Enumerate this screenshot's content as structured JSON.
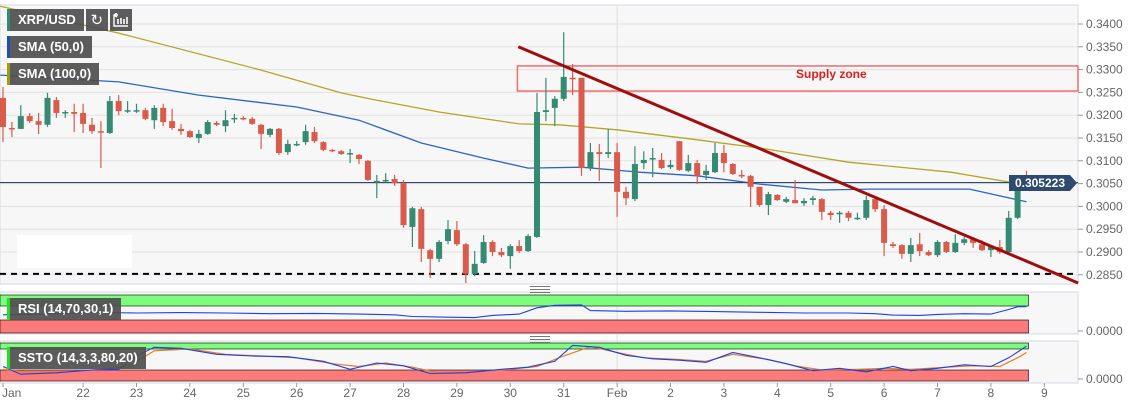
{
  "legend": {
    "symbol": "XRP/USD",
    "sma50": "SMA (50,0)",
    "sma100": "SMA (100,0)",
    "rsi": "RSI (14,70,30,1)",
    "ssto": "SSTO (14,3,3,80,20)",
    "refresh_icon": "↻",
    "bars_icon": "bar-chart-icon"
  },
  "colors": {
    "up": "#358a74",
    "down": "#d95b4c",
    "sma50": "#2b64c8",
    "sma100": "#b5a425",
    "trendline": "#a00d0d",
    "zone": "#f36b6b",
    "price_line": "#2e4a6e",
    "rsi_line": "#1a3ff0",
    "ssto_k": "#1a3ff0",
    "ssto_d": "#f07a1a",
    "band_high": "#7dfc7d",
    "band_low": "#fb7b7b"
  },
  "current_price": "0.305223",
  "supply_zone_label": "Supply zone",
  "rsi_axis_label": "0.0000",
  "ssto_axis_label": "0.0000",
  "chart_data": {
    "type": "candlestick",
    "symbol": "XRP/USD",
    "interval_hours": 4,
    "ylim": [
      0.283,
      0.344
    ],
    "y_ticks": [
      "0.3400",
      "0.3350",
      "0.3300",
      "0.3250",
      "0.3200",
      "0.3150",
      "0.3100",
      "0.3050",
      "0.3000",
      "0.2950",
      "0.2900",
      "0.2850"
    ],
    "x_labels": [
      {
        "label": "Jan",
        "index": 0
      },
      {
        "label": "22",
        "index": 9
      },
      {
        "label": "23",
        "index": 15
      },
      {
        "label": "24",
        "index": 21
      },
      {
        "label": "25",
        "index": 27
      },
      {
        "label": "26",
        "index": 33
      },
      {
        "label": "27",
        "index": 39
      },
      {
        "label": "28",
        "index": 45
      },
      {
        "label": "29",
        "index": 51
      },
      {
        "label": "30",
        "index": 57
      },
      {
        "label": "31",
        "index": 63
      },
      {
        "label": "Feb",
        "index": 69
      },
      {
        "label": "2",
        "index": 75
      },
      {
        "label": "3",
        "index": 81
      },
      {
        "label": "4",
        "index": 87
      },
      {
        "label": "5",
        "index": 93
      },
      {
        "label": "6",
        "index": 99
      },
      {
        "label": "7",
        "index": 105
      },
      {
        "label": "8",
        "index": 111
      },
      {
        "label": "9",
        "index": 117
      }
    ],
    "ohlc": [
      [
        0.3238,
        0.3262,
        0.3141,
        0.3174
      ],
      [
        0.3172,
        0.3185,
        0.3152,
        0.3171
      ],
      [
        0.317,
        0.3222,
        0.317,
        0.3198
      ],
      [
        0.3198,
        0.3205,
        0.3183,
        0.3187
      ],
      [
        0.3187,
        0.3205,
        0.3159,
        0.3179
      ],
      [
        0.3179,
        0.3249,
        0.3174,
        0.3238
      ],
      [
        0.3233,
        0.324,
        0.3194,
        0.3205
      ],
      [
        0.3205,
        0.3211,
        0.3194,
        0.3207
      ],
      [
        0.3207,
        0.3225,
        0.3163,
        0.3203
      ],
      [
        0.3205,
        0.3225,
        0.3161,
        0.3181
      ],
      [
        0.3179,
        0.3194,
        0.3159,
        0.3165
      ],
      [
        0.3165,
        0.3187,
        0.3084,
        0.3163
      ],
      [
        0.3161,
        0.3242,
        0.3159,
        0.3231
      ],
      [
        0.3231,
        0.3244,
        0.32,
        0.3209
      ],
      [
        0.3209,
        0.3231,
        0.3205,
        0.3211
      ],
      [
        0.3209,
        0.3225,
        0.3205,
        0.3211
      ],
      [
        0.3211,
        0.3216,
        0.3189,
        0.3192
      ],
      [
        0.3189,
        0.3222,
        0.317,
        0.3216
      ],
      [
        0.3216,
        0.3225,
        0.3176,
        0.3185
      ],
      [
        0.3187,
        0.3214,
        0.3168,
        0.3172
      ],
      [
        0.317,
        0.3181,
        0.3157,
        0.3165
      ],
      [
        0.3165,
        0.3168,
        0.315,
        0.3152
      ],
      [
        0.315,
        0.3168,
        0.3139,
        0.3159
      ],
      [
        0.3159,
        0.3189,
        0.3157,
        0.3185
      ],
      [
        0.3183,
        0.3187,
        0.3176,
        0.3179
      ],
      [
        0.3176,
        0.3211,
        0.3163,
        0.3189
      ],
      [
        0.3192,
        0.3203,
        0.3183,
        0.3194
      ],
      [
        0.3194,
        0.3198,
        0.3189,
        0.3192
      ],
      [
        0.3192,
        0.3196,
        0.3179,
        0.3181
      ],
      [
        0.3179,
        0.3181,
        0.3126,
        0.3159
      ],
      [
        0.3157,
        0.3172,
        0.3152,
        0.317
      ],
      [
        0.317,
        0.3172,
        0.3113,
        0.3117
      ],
      [
        0.3119,
        0.3146,
        0.3113,
        0.3137
      ],
      [
        0.3135,
        0.3143,
        0.3132,
        0.3137
      ],
      [
        0.3141,
        0.3179,
        0.3135,
        0.3165
      ],
      [
        0.3163,
        0.3174,
        0.3139,
        0.3143
      ],
      [
        0.3141,
        0.3143,
        0.3121,
        0.3124
      ],
      [
        0.3124,
        0.3126,
        0.3119,
        0.3121
      ],
      [
        0.3121,
        0.3124,
        0.3113,
        0.3115
      ],
      [
        0.3115,
        0.3126,
        0.3095,
        0.3117
      ],
      [
        0.3113,
        0.3115,
        0.3093,
        0.3104
      ],
      [
        0.31,
        0.3102,
        0.3056,
        0.3058
      ],
      [
        0.3053,
        0.3069,
        0.3018,
        0.3056
      ],
      [
        0.3056,
        0.3073,
        0.3053,
        0.3058
      ],
      [
        0.306,
        0.3069,
        0.3045,
        0.3051
      ],
      [
        0.3051,
        0.3058,
        0.2953,
        0.2959
      ],
      [
        0.2955,
        0.2999,
        0.2911,
        0.2996
      ],
      [
        0.2994,
        0.2999,
        0.2878,
        0.2907
      ],
      [
        0.2904,
        0.2907,
        0.2843,
        0.2885
      ],
      [
        0.2885,
        0.2926,
        0.2878,
        0.2922
      ],
      [
        0.2924,
        0.297,
        0.2917,
        0.295
      ],
      [
        0.2948,
        0.2968,
        0.2913,
        0.2917
      ],
      [
        0.2917,
        0.292,
        0.2832,
        0.2852
      ],
      [
        0.2852,
        0.2902,
        0.2847,
        0.2874
      ],
      [
        0.2876,
        0.2937,
        0.2874,
        0.2922
      ],
      [
        0.2922,
        0.2926,
        0.2891,
        0.29
      ],
      [
        0.29,
        0.2909,
        0.2889,
        0.2893
      ],
      [
        0.2891,
        0.2917,
        0.2863,
        0.2913
      ],
      [
        0.2913,
        0.2926,
        0.2898,
        0.2902
      ],
      [
        0.2902,
        0.2939,
        0.29,
        0.2935
      ],
      [
        0.2933,
        0.3249,
        0.2931,
        0.3207
      ],
      [
        0.3207,
        0.3282,
        0.3187,
        0.3211
      ],
      [
        0.3216,
        0.3242,
        0.3176,
        0.3236
      ],
      [
        0.3236,
        0.3382,
        0.3231,
        0.3284
      ],
      [
        0.3282,
        0.3312,
        0.3244,
        0.3279
      ],
      [
        0.3282,
        0.3282,
        0.3067,
        0.3084
      ],
      [
        0.3084,
        0.3139,
        0.3078,
        0.3119
      ],
      [
        0.3119,
        0.3137,
        0.3056,
        0.3115
      ],
      [
        0.3115,
        0.317,
        0.3106,
        0.3119
      ],
      [
        0.3119,
        0.3139,
        0.2977,
        0.3032
      ],
      [
        0.3032,
        0.3043,
        0.3003,
        0.3018
      ],
      [
        0.3016,
        0.3132,
        0.3012,
        0.3093
      ],
      [
        0.3095,
        0.3121,
        0.3082,
        0.3102
      ],
      [
        0.3104,
        0.3128,
        0.3064,
        0.3106
      ],
      [
        0.3102,
        0.3117,
        0.3082,
        0.3084
      ],
      [
        0.3086,
        0.3102,
        0.3082,
        0.3091
      ],
      [
        0.3143,
        0.3143,
        0.3078,
        0.308
      ],
      [
        0.3078,
        0.3113,
        0.3075,
        0.3095
      ],
      [
        0.3095,
        0.3102,
        0.3049,
        0.3067
      ],
      [
        0.3069,
        0.3091,
        0.3058,
        0.3078
      ],
      [
        0.3075,
        0.3139,
        0.3073,
        0.3117
      ],
      [
        0.3117,
        0.3135,
        0.3075,
        0.3095
      ],
      [
        0.3093,
        0.3095,
        0.3069,
        0.3071
      ],
      [
        0.3069,
        0.308,
        0.3062,
        0.3067
      ],
      [
        0.3067,
        0.3069,
        0.2999,
        0.3043
      ],
      [
        0.3043,
        0.3043,
        0.2999,
        0.3003
      ],
      [
        0.3003,
        0.3032,
        0.2981,
        0.3027
      ],
      [
        0.3025,
        0.3027,
        0.3012,
        0.3014
      ],
      [
        0.301,
        0.3021,
        0.3007,
        0.3016
      ],
      [
        0.3014,
        0.3058,
        0.3007,
        0.3007
      ],
      [
        0.3007,
        0.3018,
        0.3001,
        0.3012
      ],
      [
        0.3014,
        0.3023,
        0.3003,
        0.3018
      ],
      [
        0.3016,
        0.3018,
        0.297,
        0.2988
      ],
      [
        0.2986,
        0.299,
        0.297,
        0.2981
      ],
      [
        0.2983,
        0.299,
        0.2964,
        0.2986
      ],
      [
        0.2986,
        0.299,
        0.2968,
        0.2975
      ],
      [
        0.2972,
        0.2986,
        0.297,
        0.2975
      ],
      [
        0.2975,
        0.3023,
        0.297,
        0.3014
      ],
      [
        0.3016,
        0.3021,
        0.2988,
        0.2994
      ],
      [
        0.2994,
        0.3003,
        0.2891,
        0.292
      ],
      [
        0.2917,
        0.2922,
        0.2909,
        0.2913
      ],
      [
        0.2915,
        0.2917,
        0.2885,
        0.2896
      ],
      [
        0.2896,
        0.2931,
        0.2878,
        0.2915
      ],
      [
        0.2917,
        0.2942,
        0.2891,
        0.2902
      ],
      [
        0.29,
        0.2904,
        0.2891,
        0.2893
      ],
      [
        0.2893,
        0.2926,
        0.2889,
        0.2922
      ],
      [
        0.2922,
        0.2924,
        0.2898,
        0.29
      ],
      [
        0.29,
        0.2939,
        0.2898,
        0.292
      ],
      [
        0.292,
        0.2933,
        0.2915,
        0.2928
      ],
      [
        0.2928,
        0.2933,
        0.2909,
        0.292
      ],
      [
        0.2917,
        0.2926,
        0.2902,
        0.2904
      ],
      [
        0.2904,
        0.2915,
        0.2889,
        0.2911
      ],
      [
        0.2911,
        0.2926,
        0.2896,
        0.29
      ],
      [
        0.29,
        0.299,
        0.2898,
        0.2975
      ],
      [
        0.2975,
        0.3062,
        0.2972,
        0.3058
      ],
      [
        0.306,
        0.3078,
        0.3051,
        0.3053
      ]
    ],
    "sma50": [
      [
        -0.3,
        0.3288
      ],
      [
        13,
        0.3273
      ],
      [
        22,
        0.3244
      ],
      [
        33,
        0.3218
      ],
      [
        40,
        0.3189
      ],
      [
        47,
        0.3139
      ],
      [
        54,
        0.3106
      ],
      [
        59,
        0.3084
      ],
      [
        65,
        0.3086
      ],
      [
        71.5,
        0.3075
      ],
      [
        78,
        0.3067
      ],
      [
        85,
        0.3049
      ],
      [
        92,
        0.3036
      ],
      [
        97.5,
        0.3038
      ],
      [
        108.6,
        0.3038
      ],
      [
        112,
        0.3023
      ],
      [
        115,
        0.301
      ]
    ],
    "sma100": [
      [
        -0.3,
        0.3439
      ],
      [
        13,
        0.338
      ],
      [
        29,
        0.3299
      ],
      [
        38,
        0.3249
      ],
      [
        42,
        0.3233
      ],
      [
        49,
        0.3207
      ],
      [
        58,
        0.3181
      ],
      [
        62.5,
        0.3179
      ],
      [
        69,
        0.3168
      ],
      [
        78,
        0.3146
      ],
      [
        85,
        0.3128
      ],
      [
        95,
        0.3097
      ],
      [
        106.5,
        0.3075
      ],
      [
        115,
        0.3047
      ]
    ],
    "trendline": [
      [
        57.9,
        0.335
      ],
      [
        120.8,
        0.2832
      ]
    ],
    "supply_zone": {
      "from_index": 57.8,
      "top": 0.3308,
      "bottom": 0.3253
    },
    "support_level": 0.2852,
    "current_price": 0.305223,
    "rsi": {
      "upper": 70,
      "lower": 30,
      "points": [
        [
          0,
          45
        ],
        [
          5,
          47
        ],
        [
          10,
          52
        ],
        [
          15,
          50
        ],
        [
          20,
          51
        ],
        [
          25,
          50
        ],
        [
          30,
          48
        ],
        [
          35,
          49
        ],
        [
          40,
          47
        ],
        [
          44,
          45
        ],
        [
          46,
          40
        ],
        [
          50,
          38
        ],
        [
          53,
          37
        ],
        [
          55,
          43
        ],
        [
          58,
          47
        ],
        [
          60,
          65
        ],
        [
          62,
          72
        ],
        [
          65,
          73
        ],
        [
          66,
          57
        ],
        [
          70,
          55
        ],
        [
          75,
          56
        ],
        [
          80,
          54
        ],
        [
          85,
          52
        ],
        [
          90,
          50
        ],
        [
          95,
          50
        ],
        [
          98,
          48
        ],
        [
          100,
          44
        ],
        [
          103,
          43
        ],
        [
          105,
          46
        ],
        [
          108,
          48
        ],
        [
          111,
          47
        ],
        [
          113,
          60
        ],
        [
          114,
          68
        ],
        [
          115,
          68
        ]
      ]
    },
    "ssto": {
      "upper": 80,
      "lower": 20,
      "k": [
        [
          0,
          30
        ],
        [
          2,
          8
        ],
        [
          6,
          12
        ],
        [
          10,
          20
        ],
        [
          13,
          22
        ],
        [
          15,
          60
        ],
        [
          17,
          85
        ],
        [
          20,
          82
        ],
        [
          24,
          65
        ],
        [
          28,
          60
        ],
        [
          32,
          58
        ],
        [
          36,
          45
        ],
        [
          39,
          22
        ],
        [
          42,
          40
        ],
        [
          45,
          32
        ],
        [
          48,
          10
        ],
        [
          52,
          12
        ],
        [
          56,
          22
        ],
        [
          59,
          28
        ],
        [
          62,
          45
        ],
        [
          64,
          90
        ],
        [
          67,
          85
        ],
        [
          70,
          62
        ],
        [
          73,
          52
        ],
        [
          76,
          48
        ],
        [
          79,
          42
        ],
        [
          82,
          70
        ],
        [
          85,
          55
        ],
        [
          88,
          38
        ],
        [
          91,
          18
        ],
        [
          94,
          25
        ],
        [
          97,
          15
        ],
        [
          100,
          30
        ],
        [
          102,
          18
        ],
        [
          105,
          25
        ],
        [
          108,
          35
        ],
        [
          111,
          30
        ],
        [
          113,
          55
        ],
        [
          115,
          88
        ]
      ],
      "d": [
        [
          0,
          22
        ],
        [
          3,
          14
        ],
        [
          7,
          15
        ],
        [
          11,
          22
        ],
        [
          14,
          30
        ],
        [
          17,
          75
        ],
        [
          21,
          80
        ],
        [
          25,
          65
        ],
        [
          29,
          60
        ],
        [
          33,
          55
        ],
        [
          37,
          38
        ],
        [
          40,
          30
        ],
        [
          43,
          40
        ],
        [
          46,
          28
        ],
        [
          49,
          12
        ],
        [
          53,
          15
        ],
        [
          57,
          22
        ],
        [
          60,
          30
        ],
        [
          63,
          60
        ],
        [
          66,
          87
        ],
        [
          69,
          70
        ],
        [
          72,
          55
        ],
        [
          76,
          50
        ],
        [
          79,
          45
        ],
        [
          82,
          65
        ],
        [
          86,
          50
        ],
        [
          89,
          32
        ],
        [
          92,
          20
        ],
        [
          96,
          22
        ],
        [
          99,
          25
        ],
        [
          102,
          22
        ],
        [
          106,
          28
        ],
        [
          109,
          32
        ],
        [
          112,
          30
        ],
        [
          114,
          55
        ],
        [
          115,
          70
        ]
      ]
    }
  }
}
